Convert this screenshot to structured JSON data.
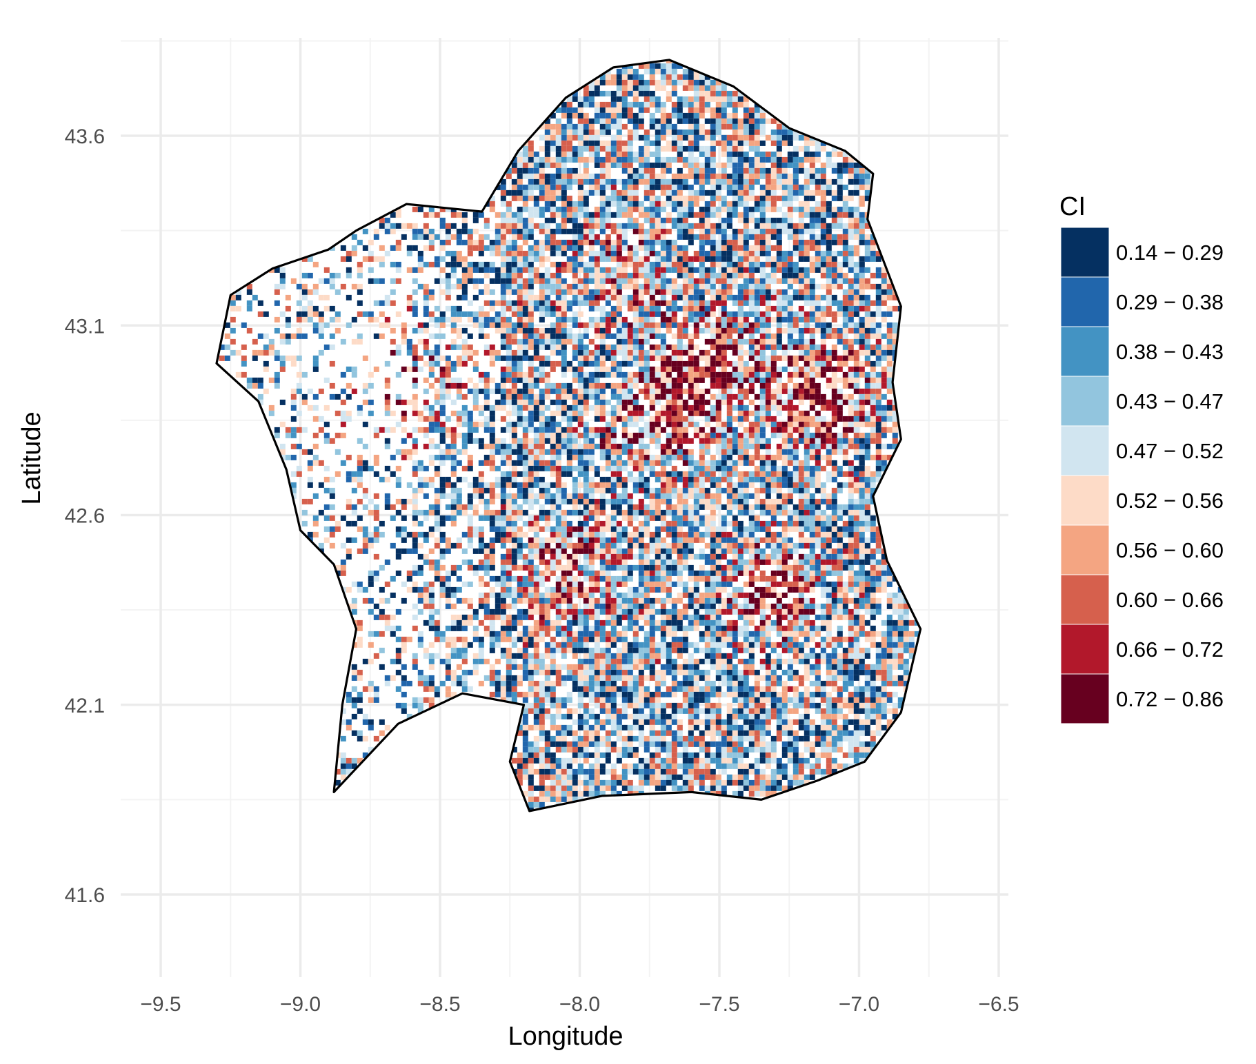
{
  "chart_data": {
    "type": "heatmap",
    "title": "",
    "xlabel": "Longitude",
    "ylabel": "Latitude",
    "xlim": [
      -9.55,
      -6.5
    ],
    "ylim": [
      41.5,
      43.9
    ],
    "x_ticks": [
      -9.5,
      -9.0,
      -8.5,
      -8.0,
      -7.5,
      -7.0,
      -6.5
    ],
    "x_tick_labels": [
      "−9.5",
      "−9.0",
      "−8.5",
      "−8.0",
      "−7.5",
      "−7.0",
      "−6.5"
    ],
    "y_ticks": [
      41.6,
      42.1,
      42.6,
      43.1,
      43.6
    ],
    "y_tick_labels": [
      "41.6",
      "42.1",
      "42.6",
      "43.1",
      "43.6"
    ],
    "grid": true,
    "legend": {
      "title": "CI",
      "position": "right",
      "bins": [
        {
          "label": "0.14 − 0.29",
          "color": "#053061"
        },
        {
          "label": "0.29 − 0.38",
          "color": "#2166ac"
        },
        {
          "label": "0.38 − 0.43",
          "color": "#4393c3"
        },
        {
          "label": "0.43 − 0.47",
          "color": "#92c5de"
        },
        {
          "label": "0.47 − 0.52",
          "color": "#d1e5f0"
        },
        {
          "label": "0.52 − 0.56",
          "color": "#fddbc7"
        },
        {
          "label": "0.56 − 0.60",
          "color": "#f4a582"
        },
        {
          "label": "0.60 − 0.66",
          "color": "#d6604d"
        },
        {
          "label": "0.66 − 0.72",
          "color": "#b2182b"
        },
        {
          "label": "0.72 − 0.86",
          "color": "#67001f"
        }
      ]
    },
    "region_outline_lonlat": [
      [
        -8.62,
        43.42
      ],
      [
        -8.35,
        43.4
      ],
      [
        -8.22,
        43.56
      ],
      [
        -8.05,
        43.7
      ],
      [
        -7.88,
        43.78
      ],
      [
        -7.68,
        43.8
      ],
      [
        -7.45,
        43.73
      ],
      [
        -7.25,
        43.62
      ],
      [
        -7.05,
        43.56
      ],
      [
        -6.95,
        43.5
      ],
      [
        -6.97,
        43.38
      ],
      [
        -6.85,
        43.15
      ],
      [
        -6.88,
        42.95
      ],
      [
        -6.85,
        42.8
      ],
      [
        -6.95,
        42.65
      ],
      [
        -6.9,
        42.48
      ],
      [
        -6.78,
        42.3
      ],
      [
        -6.85,
        42.08
      ],
      [
        -6.98,
        41.95
      ],
      [
        -7.15,
        41.9
      ],
      [
        -7.35,
        41.85
      ],
      [
        -7.6,
        41.87
      ],
      [
        -7.92,
        41.86
      ],
      [
        -8.18,
        41.82
      ],
      [
        -8.25,
        41.95
      ],
      [
        -8.2,
        42.1
      ],
      [
        -8.42,
        42.13
      ],
      [
        -8.65,
        42.05
      ],
      [
        -8.88,
        41.87
      ],
      [
        -8.85,
        42.1
      ],
      [
        -8.8,
        42.3
      ],
      [
        -8.88,
        42.47
      ],
      [
        -9.0,
        42.56
      ],
      [
        -9.05,
        42.72
      ],
      [
        -9.15,
        42.9
      ],
      [
        -9.3,
        43.0
      ],
      [
        -9.25,
        43.18
      ],
      [
        -9.1,
        43.25
      ],
      [
        -8.9,
        43.3
      ],
      [
        -8.8,
        43.35
      ],
      [
        -8.62,
        43.42
      ]
    ],
    "cells": [
      {
        "lon": -7.57,
        "lat": 43.12,
        "ci_bin": "0.72 − 0.86"
      },
      {
        "lon": -7.16,
        "lat": 42.94,
        "ci_bin": "0.72 − 0.86"
      },
      {
        "lon": -8.68,
        "lat": 42.96,
        "ci_bin": "0.66 − 0.72"
      },
      {
        "lon": -7.6,
        "lat": 42.88,
        "ci_bin": "0.66 − 0.72"
      },
      {
        "lon": -7.3,
        "lat": 42.4,
        "ci_bin": "0.66 − 0.72"
      },
      {
        "lon": -8.05,
        "lat": 43.45,
        "ci_bin": "0.29 − 0.38"
      },
      {
        "lon": -7.2,
        "lat": 43.1,
        "ci_bin": "0.38 − 0.43"
      },
      {
        "lon": -8.3,
        "lat": 42.6,
        "ci_bin": "0.52 − 0.56"
      },
      {
        "lon": -7.8,
        "lat": 42.2,
        "ci_bin": "0.47 − 0.52"
      }
    ]
  }
}
